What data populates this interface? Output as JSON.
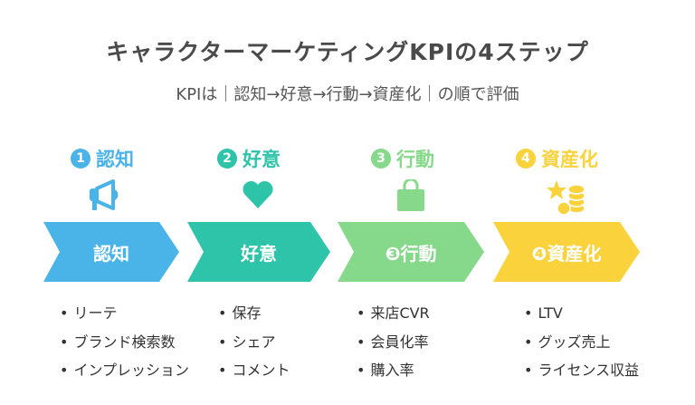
{
  "title": "キャラクターマーケティングKPIの4ステップ",
  "subtitle": "KPIは｜認知→好意→行動→資産化｜の順で評価",
  "steps": [
    {
      "num": "1",
      "label": "認知",
      "arrow_label": "認知",
      "color": "#4ab3e8",
      "icon": "megaphone-icon",
      "items": [
        "リーテ",
        "ブランド検索数",
        "インプレッション"
      ]
    },
    {
      "num": "2",
      "label": "好意",
      "arrow_label": "好意",
      "color": "#2ec4a9",
      "icon": "heart-icon",
      "items": [
        "保存",
        "シェア",
        "コメント"
      ]
    },
    {
      "num": "3",
      "label": "行動",
      "arrow_label": "❸行動",
      "color": "#86d98a",
      "icon": "shopping-bag-icon",
      "items": [
        "来店CVR",
        "会員化率",
        "購入率"
      ]
    },
    {
      "num": "4",
      "label": "資産化",
      "arrow_label": "❹資産化",
      "color": "#f9d23c",
      "icon": "star-coins-icon",
      "items": [
        "LTV",
        "グッズ売上",
        "ライセンス収益"
      ]
    }
  ]
}
